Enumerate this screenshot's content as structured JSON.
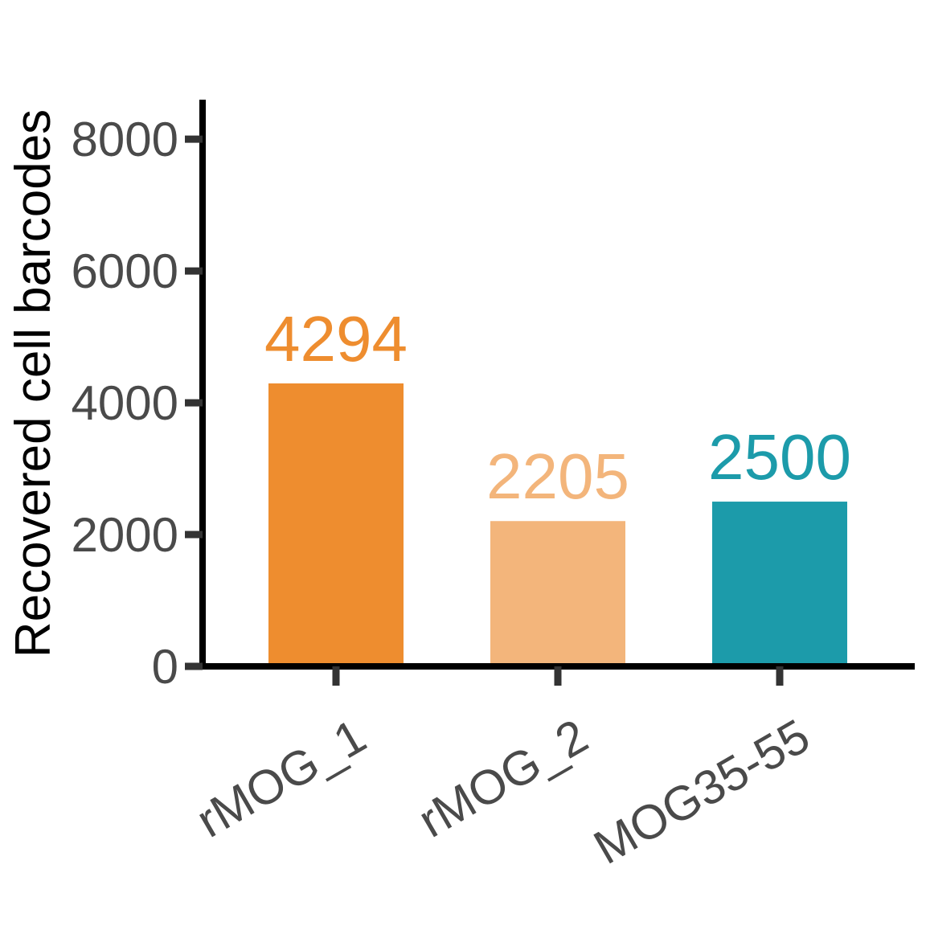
{
  "chart_data": {
    "type": "bar",
    "categories": [
      "rMOG_1",
      "rMOG_2",
      "MOG35-55"
    ],
    "values": [
      4294,
      2205,
      2500
    ],
    "data_labels": [
      "4294",
      "2205",
      "2500"
    ],
    "colors": [
      "#EE8D2F",
      "#F3B57B",
      "#1C9BAA"
    ],
    "ylabel": "Recovered cell barcodes",
    "xlabel": "",
    "ylim": [
      0,
      8600
    ],
    "yticks": [
      0,
      2000,
      4000,
      6000,
      8000
    ],
    "ytick_labels": [
      "0",
      "2000",
      "4000",
      "6000",
      "8000"
    ],
    "grid": false,
    "legend": "none"
  }
}
